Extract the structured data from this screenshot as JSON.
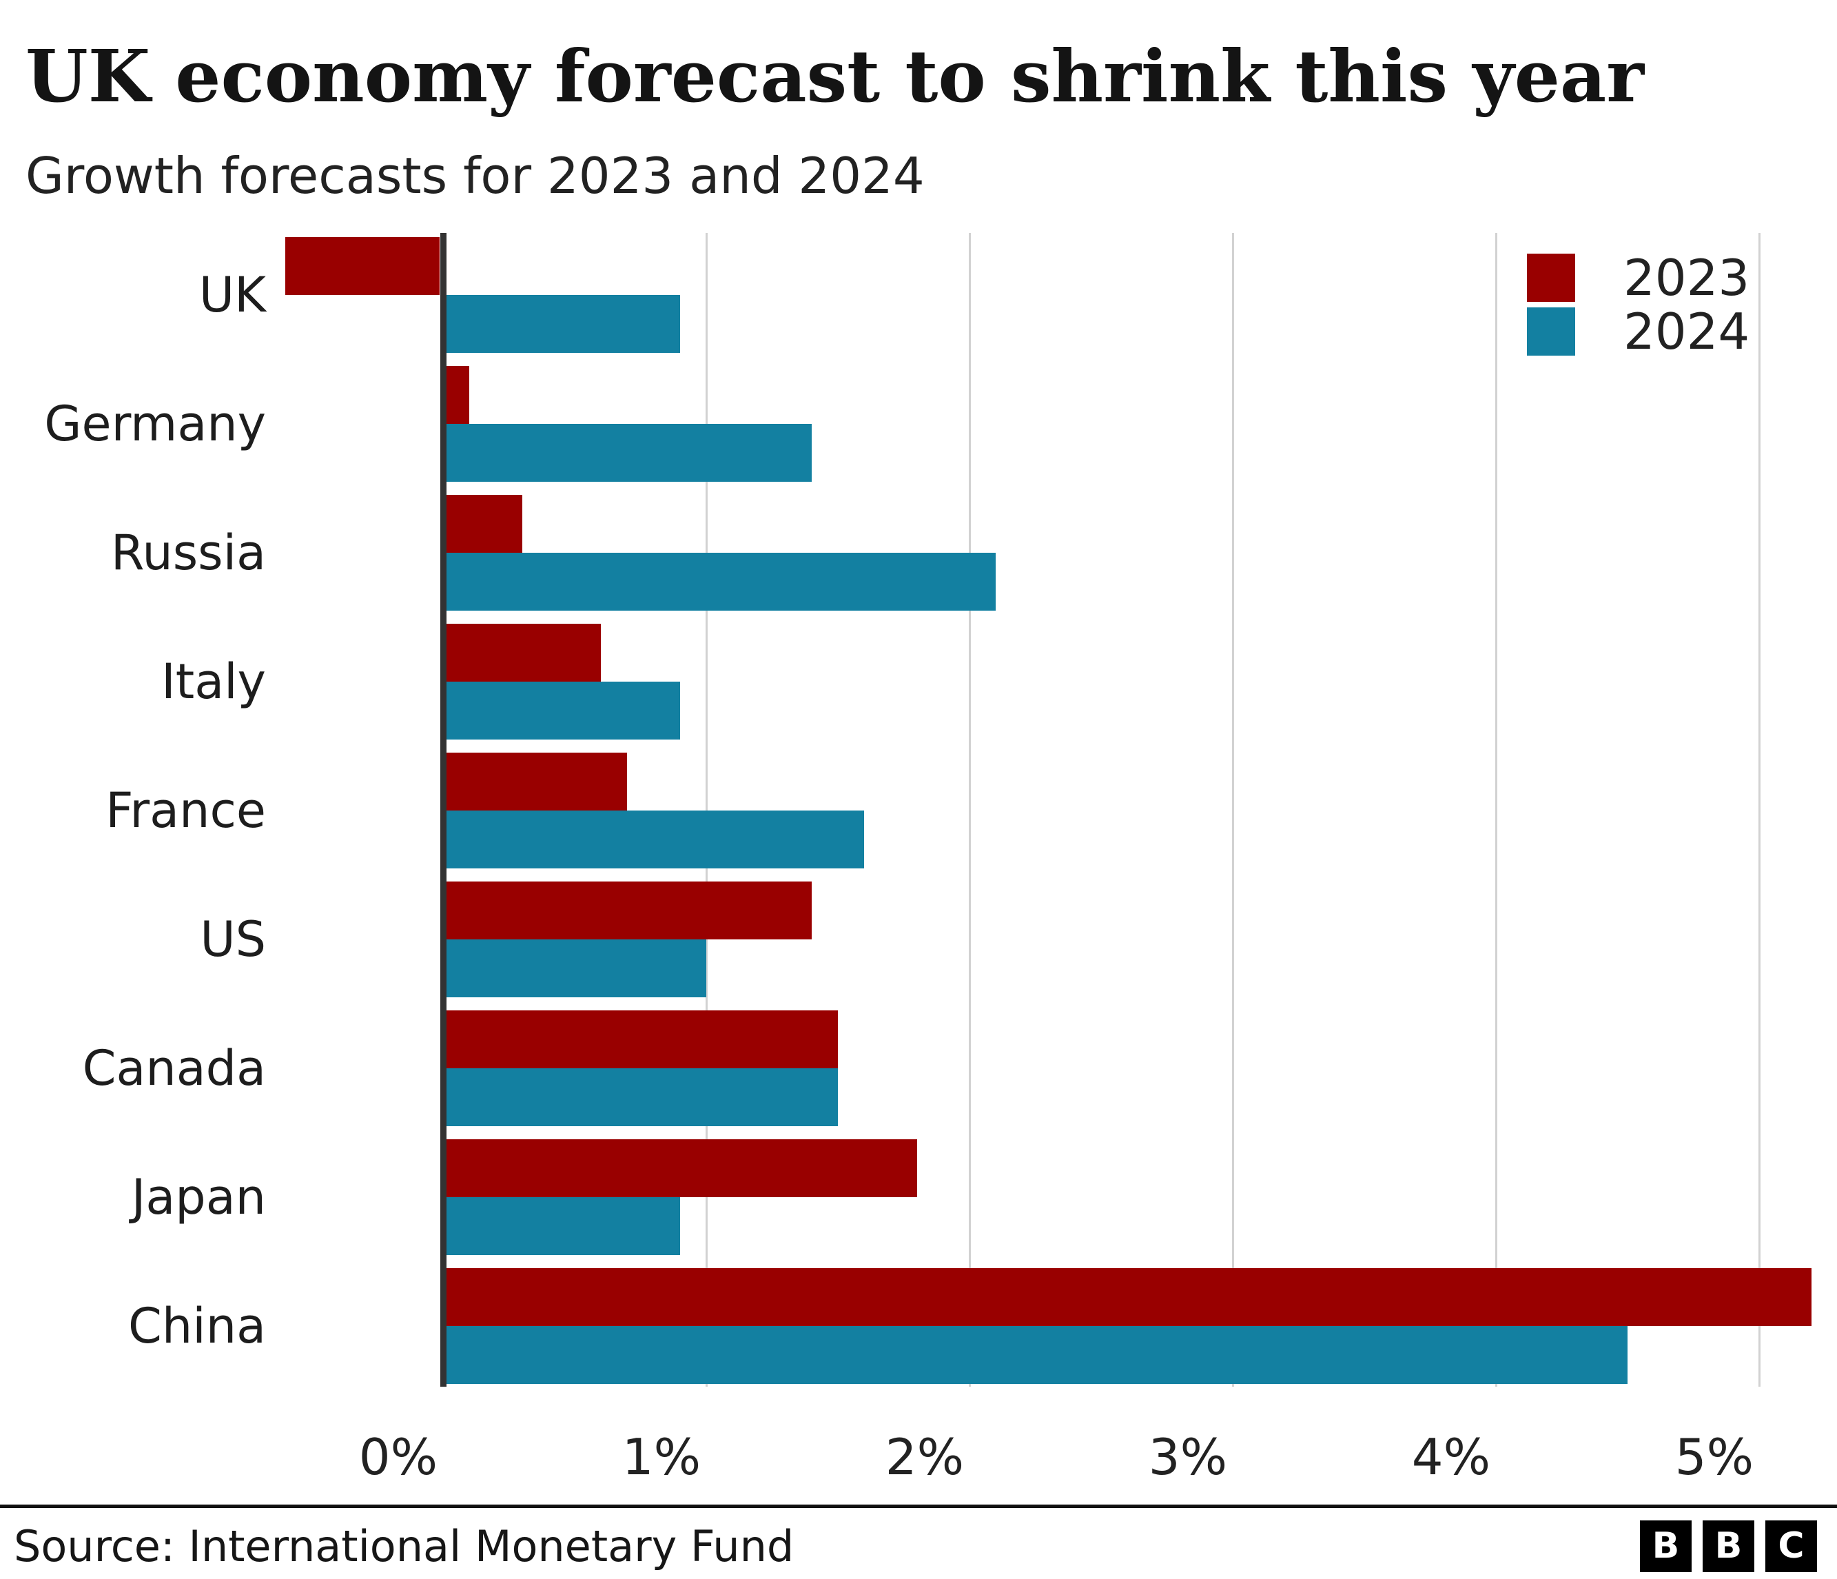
{
  "header": {
    "title": "UK economy forecast to shrink this year",
    "subtitle": "Growth forecasts for 2023 and 2024"
  },
  "footer": {
    "source": "Source: International Monetary Fund",
    "logo_letters": [
      "B",
      "B",
      "C"
    ]
  },
  "colors": {
    "series_2023": "#990000",
    "series_2024": "#1380a1",
    "gridline": "#d2d2d2",
    "zero_line": "#333333",
    "divider": "#111111",
    "bbc_square": "#000000",
    "bbc_letter": "#ffffff"
  },
  "chart_data": {
    "type": "bar",
    "orientation": "horizontal",
    "title": "UK economy forecast to shrink this year",
    "subtitle": "Growth forecasts for 2023 and 2024",
    "unit": "%",
    "categories": [
      "UK",
      "Germany",
      "Russia",
      "Italy",
      "France",
      "US",
      "Canada",
      "Japan",
      "China"
    ],
    "series": [
      {
        "name": "2023",
        "color": "#990000",
        "values": [
          -0.6,
          0.1,
          0.3,
          0.6,
          0.7,
          1.4,
          1.5,
          1.8,
          5.2
        ]
      },
      {
        "name": "2024",
        "color": "#1380a1",
        "values": [
          0.9,
          1.4,
          2.1,
          0.9,
          1.6,
          1.0,
          1.5,
          0.9,
          4.5
        ]
      }
    ],
    "x_ticks": {
      "values": [
        0,
        1,
        2,
        3,
        4,
        5
      ],
      "labels": [
        "0%",
        "1%",
        "2%",
        "3%",
        "4%",
        "5%"
      ]
    },
    "xlim": [
      -0.7,
      5.3
    ],
    "grid": true,
    "legend_position": "top-right",
    "source": "Source: International Monetary Fund"
  }
}
